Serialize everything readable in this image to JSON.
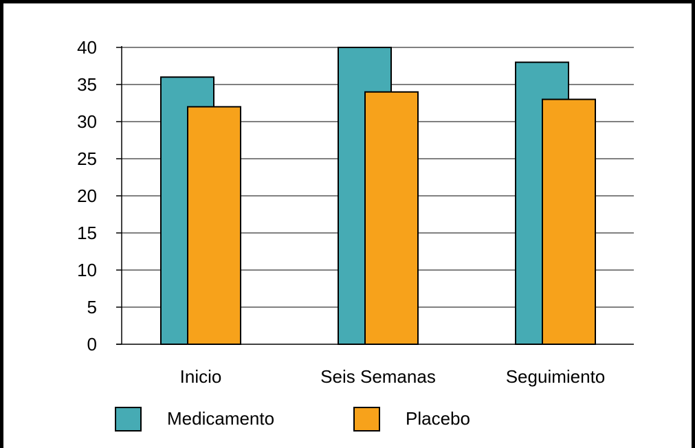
{
  "colors": {
    "medicamento": "#46ABB4",
    "placebo": "#F7A21B",
    "axis": "#000000",
    "grid": "#000000",
    "background": "#ffffff"
  },
  "chart_data": {
    "type": "bar",
    "title": "",
    "xlabel": "",
    "ylabel": "",
    "categories": [
      "Inicio",
      "Seis Semanas",
      "Seguimiento"
    ],
    "series": [
      {
        "name": "Medicamento",
        "values": [
          36,
          40,
          38
        ],
        "color": "#46ABB4"
      },
      {
        "name": "Placebo",
        "values": [
          32,
          34,
          33
        ],
        "color": "#F7A21B"
      }
    ],
    "ylim": [
      0,
      40
    ],
    "yticks": [
      0,
      5,
      10,
      15,
      20,
      25,
      30,
      35,
      40
    ],
    "grid": true,
    "legend_position": "bottom"
  }
}
